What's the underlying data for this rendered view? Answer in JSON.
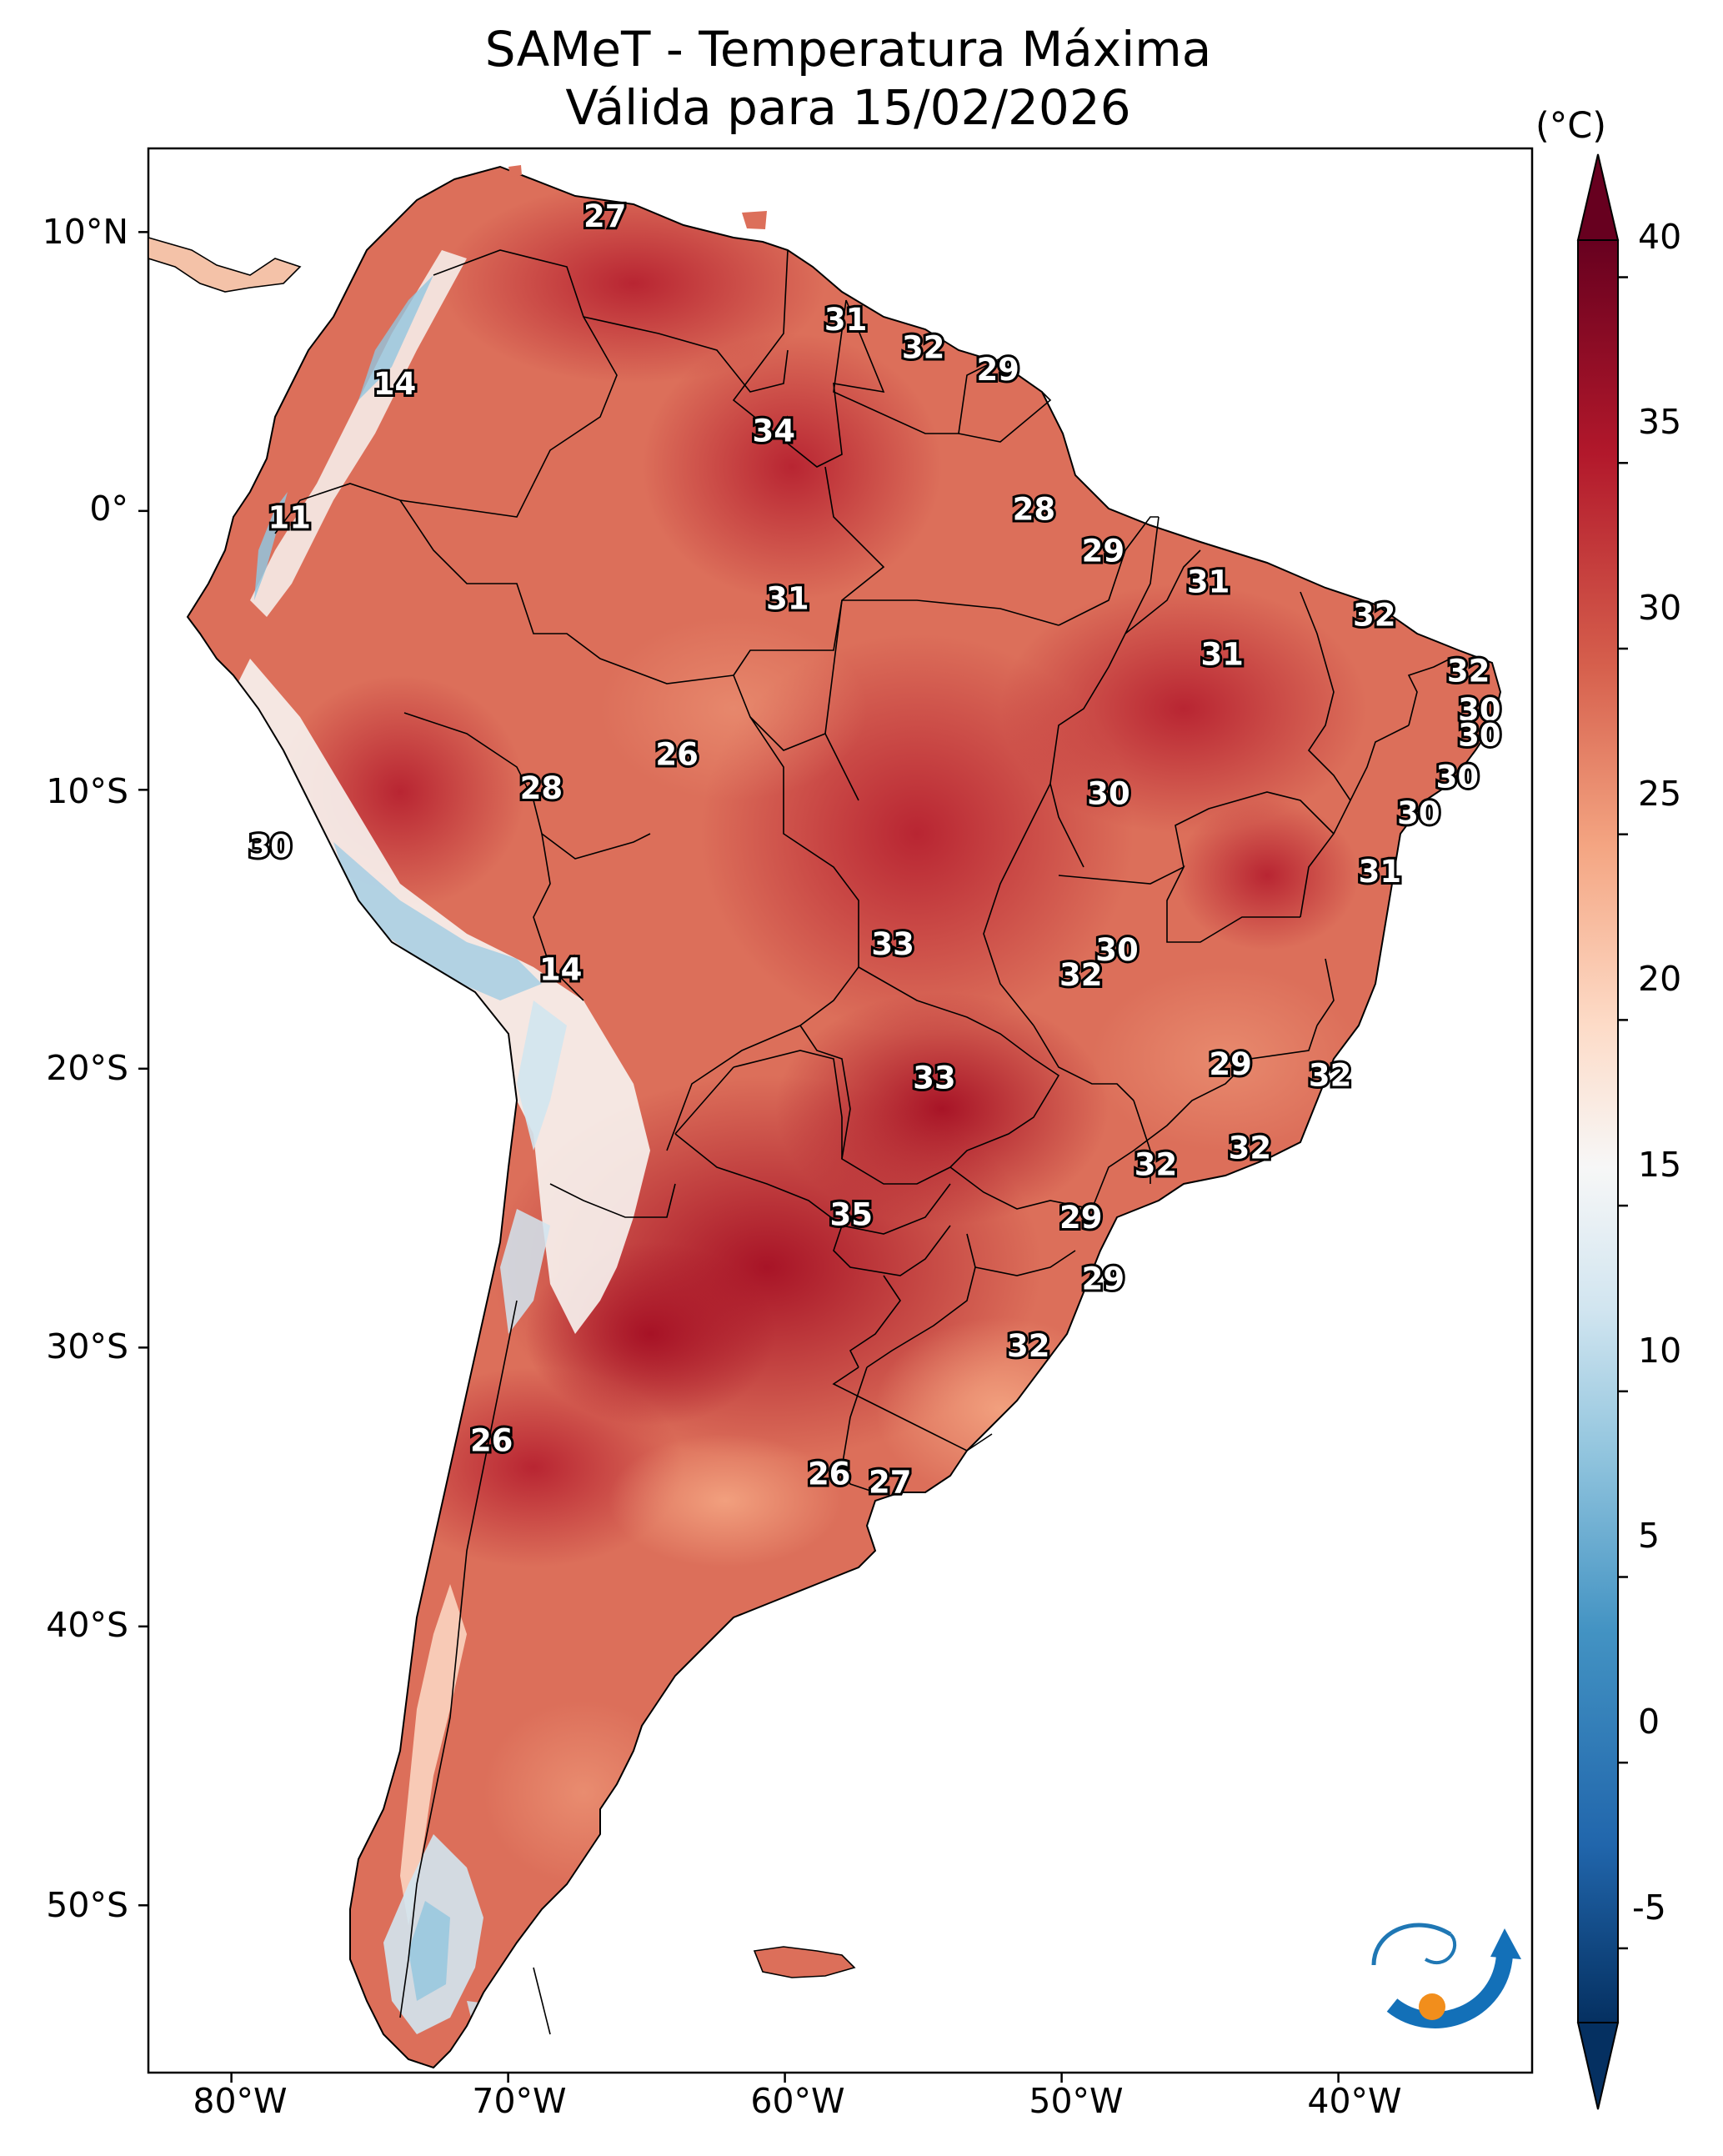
{
  "title": {
    "line1": "SAMeT - Temperatura Máxima",
    "line2": "Válida para 15/02/2026"
  },
  "axes": {
    "lat_labels": [
      "10°N",
      "0°",
      "10°S",
      "20°S",
      "30°S",
      "40°S",
      "50°S"
    ],
    "lon_labels": [
      "80°W",
      "70°W",
      "60°W",
      "50°W",
      "40°W"
    ]
  },
  "colorbar": {
    "unit": "(°C)",
    "ticks": [
      "40",
      "35",
      "30",
      "25",
      "20",
      "15",
      "10",
      "5",
      "0",
      "-5"
    ],
    "min": -7,
    "max": 41,
    "colors": {
      "cold": "#053061",
      "cool": "#4393c3",
      "neutral": "#f7f7f7",
      "warm": "#f4a582",
      "hot": "#b2182b",
      "max": "#67001f"
    }
  },
  "chart_data": {
    "type": "heatmap",
    "title": "SAMeT - Temperatura Máxima",
    "subtitle": "Válida para 15/02/2026",
    "units": "°C",
    "value_range": [
      -7,
      41
    ],
    "lon_range": [
      -83,
      -33
    ],
    "lat_range": [
      -56,
      13
    ],
    "station_labels": [
      {
        "lon": -66.5,
        "lat": 10.5,
        "value": 27
      },
      {
        "lon": -57.8,
        "lat": 6.8,
        "value": 31
      },
      {
        "lon": -55.0,
        "lat": 5.8,
        "value": 32
      },
      {
        "lon": -52.3,
        "lat": 5.0,
        "value": 29
      },
      {
        "lon": -74.1,
        "lat": 4.5,
        "value": 14
      },
      {
        "lon": -60.4,
        "lat": 2.8,
        "value": 34
      },
      {
        "lon": -77.9,
        "lat": -0.3,
        "value": 11
      },
      {
        "lon": -51.0,
        "lat": 0.0,
        "value": 28
      },
      {
        "lon": -48.5,
        "lat": -1.5,
        "value": 29
      },
      {
        "lon": -44.7,
        "lat": -2.6,
        "value": 31
      },
      {
        "lon": -59.9,
        "lat": -3.2,
        "value": 31
      },
      {
        "lon": -38.7,
        "lat": -3.8,
        "value": 32
      },
      {
        "lon": -44.2,
        "lat": -5.2,
        "value": 31
      },
      {
        "lon": -35.3,
        "lat": -5.8,
        "value": 32
      },
      {
        "lon": -34.9,
        "lat": -7.2,
        "value": 30
      },
      {
        "lon": -34.9,
        "lat": -8.1,
        "value": 30
      },
      {
        "lon": -63.9,
        "lat": -8.8,
        "value": 26
      },
      {
        "lon": -68.8,
        "lat": -10.0,
        "value": 28
      },
      {
        "lon": -48.3,
        "lat": -10.2,
        "value": 30
      },
      {
        "lon": -35.7,
        "lat": -9.6,
        "value": 30
      },
      {
        "lon": -37.1,
        "lat": -10.9,
        "value": 30
      },
      {
        "lon": -78.6,
        "lat": -12.1,
        "value": 30
      },
      {
        "lon": -38.5,
        "lat": -13.0,
        "value": 31
      },
      {
        "lon": -56.1,
        "lat": -15.6,
        "value": 33
      },
      {
        "lon": -48.0,
        "lat": -15.8,
        "value": 30
      },
      {
        "lon": -49.3,
        "lat": -16.7,
        "value": 32
      },
      {
        "lon": -68.1,
        "lat": -16.5,
        "value": 14
      },
      {
        "lon": -43.9,
        "lat": -19.9,
        "value": 29
      },
      {
        "lon": -40.3,
        "lat": -20.3,
        "value": 32
      },
      {
        "lon": -54.6,
        "lat": -20.4,
        "value": 33
      },
      {
        "lon": -43.2,
        "lat": -22.9,
        "value": 32
      },
      {
        "lon": -46.6,
        "lat": -23.5,
        "value": 32
      },
      {
        "lon": -57.6,
        "lat": -25.3,
        "value": 35
      },
      {
        "lon": -49.3,
        "lat": -25.4,
        "value": 29
      },
      {
        "lon": -48.5,
        "lat": -27.6,
        "value": 29
      },
      {
        "lon": -51.2,
        "lat": -30.0,
        "value": 32
      },
      {
        "lon": -70.6,
        "lat": -33.4,
        "value": 26
      },
      {
        "lon": -58.4,
        "lat": -34.6,
        "value": 26
      },
      {
        "lon": -56.2,
        "lat": -34.9,
        "value": 27
      }
    ]
  }
}
